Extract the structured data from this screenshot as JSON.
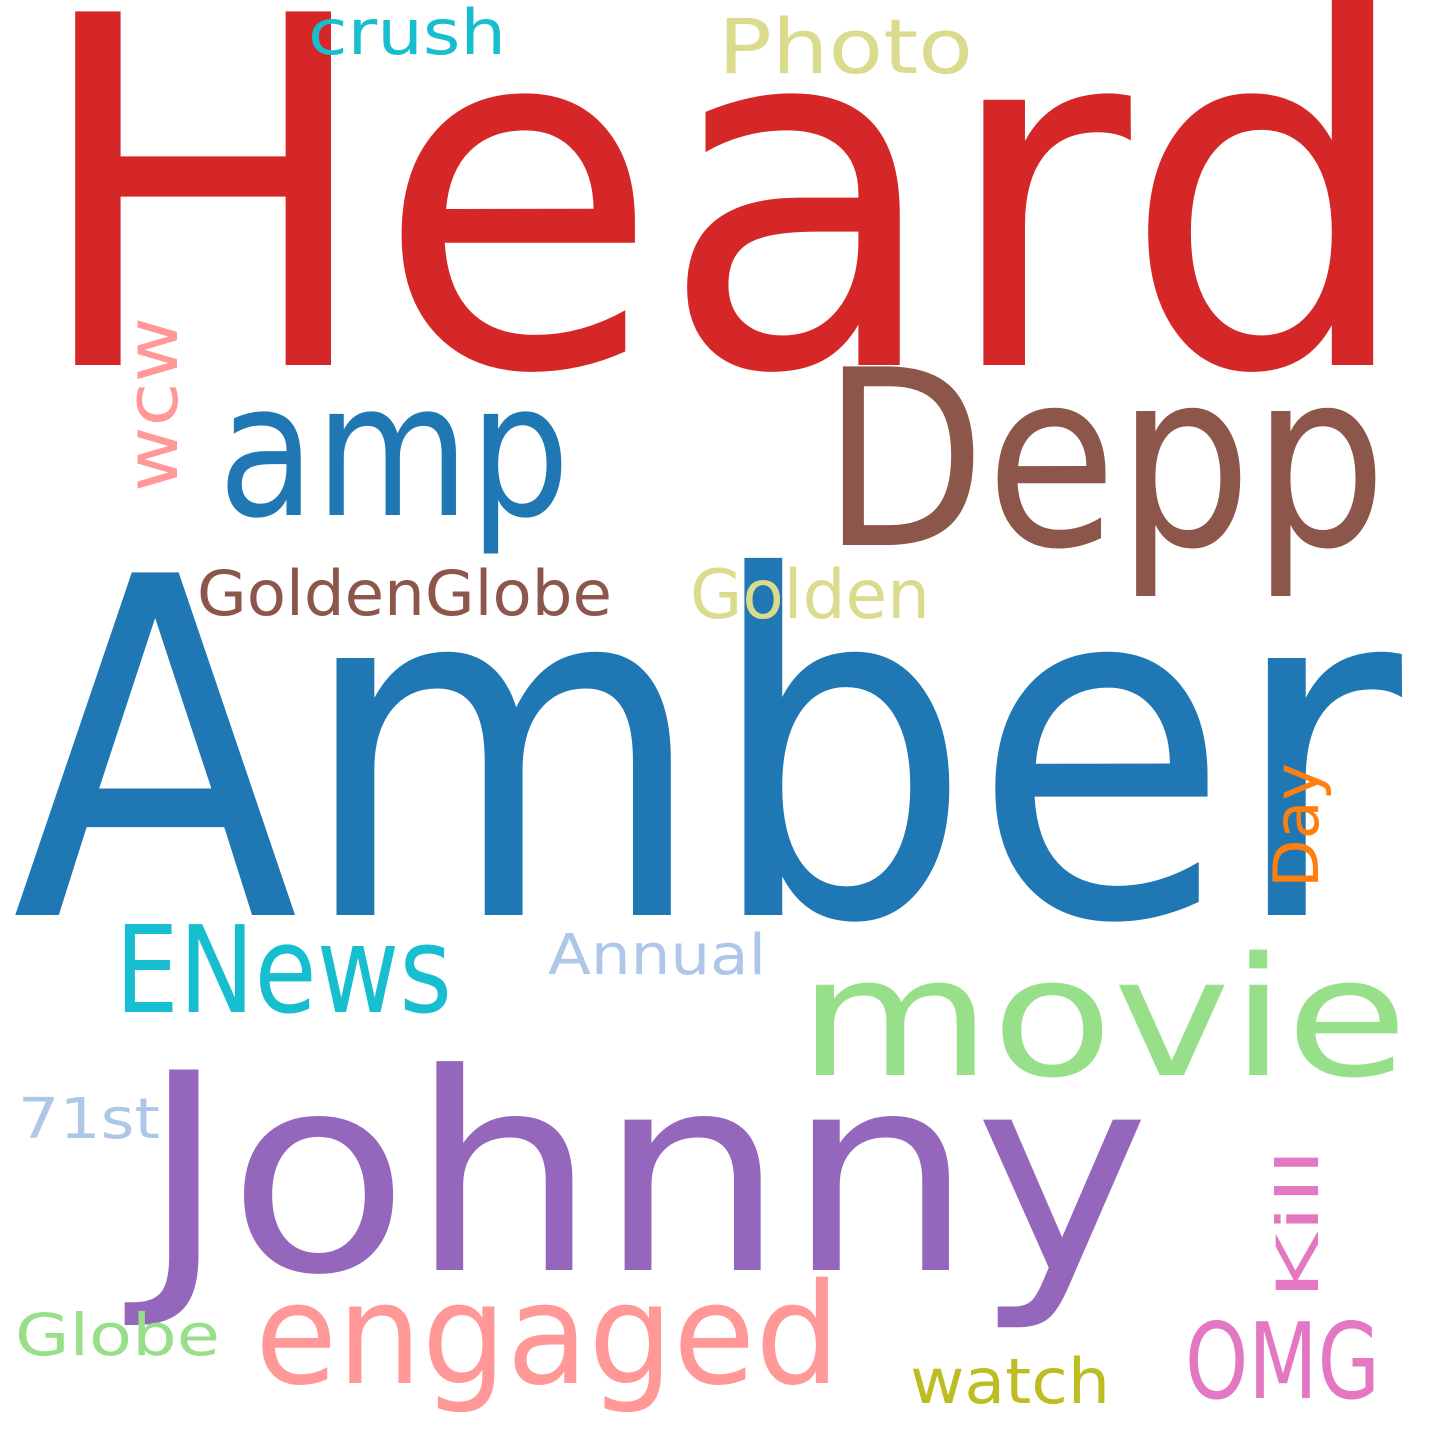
{
  "words": [
    {
      "text": "Heard",
      "color": "#d62728"
    },
    {
      "text": "Amber",
      "color": "#1f77b4"
    },
    {
      "text": "Johnny",
      "color": "#9467bd"
    },
    {
      "text": "Depp",
      "color": "#8c564b"
    },
    {
      "text": "amp",
      "color": "#1f77b4"
    },
    {
      "text": "movie",
      "color": "#98df8a"
    },
    {
      "text": "engaged",
      "color": "#ff9896"
    },
    {
      "text": "ENews",
      "color": "#17becf"
    },
    {
      "text": "OMG",
      "color": "#e377c2"
    },
    {
      "text": "GoldenGlobe",
      "color": "#8c564b"
    },
    {
      "text": "Golden",
      "color": "#dbdb8d"
    },
    {
      "text": "Photo",
      "color": "#dbdb8d"
    },
    {
      "text": "wcw",
      "color": "#ff9896"
    },
    {
      "text": "watch",
      "color": "#bcbd22"
    },
    {
      "text": "Day",
      "color": "#ff7f0e"
    },
    {
      "text": "crush",
      "color": "#17becf"
    },
    {
      "text": "Annual",
      "color": "#aec7e8"
    },
    {
      "text": "Globe",
      "color": "#98df8a"
    },
    {
      "text": "71st",
      "color": "#aec7e8"
    },
    {
      "text": "Kill",
      "color": "#e377c2"
    }
  ]
}
